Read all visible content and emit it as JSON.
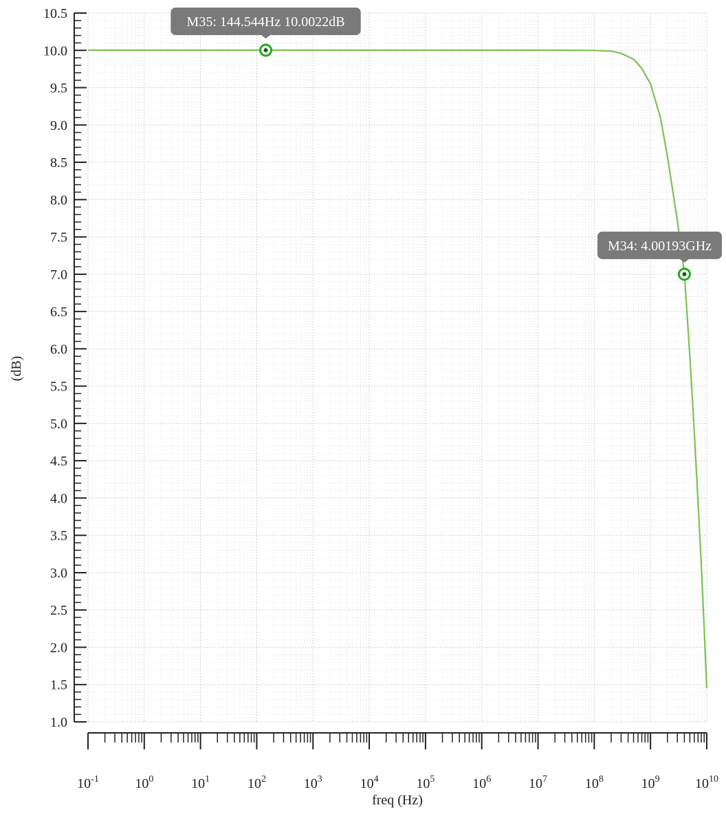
{
  "chart_data": {
    "type": "line",
    "title": "",
    "xlabel": "freq (Hz)",
    "ylabel": "(dB)",
    "xscale": "log10",
    "xlim": [
      0.1,
      10000000000
    ],
    "ylim": [
      1.0,
      10.5
    ],
    "yticks": [
      "1.0",
      "1.5",
      "2.0",
      "2.5",
      "3.0",
      "3.5",
      "4.0",
      "4.5",
      "5.0",
      "5.5",
      "6.0",
      "6.5",
      "7.0",
      "7.5",
      "8.0",
      "8.5",
      "9.0",
      "9.5",
      "10.0",
      "10.5"
    ],
    "xticks": [
      {
        "base": "10",
        "exp": "-1"
      },
      {
        "base": "10",
        "exp": "0"
      },
      {
        "base": "10",
        "exp": "1"
      },
      {
        "base": "10",
        "exp": "2"
      },
      {
        "base": "10",
        "exp": "3"
      },
      {
        "base": "10",
        "exp": "4"
      },
      {
        "base": "10",
        "exp": "5"
      },
      {
        "base": "10",
        "exp": "6"
      },
      {
        "base": "10",
        "exp": "7"
      },
      {
        "base": "10",
        "exp": "8"
      },
      {
        "base": "10",
        "exp": "9"
      },
      {
        "base": "10",
        "exp": "10"
      }
    ],
    "grid": true,
    "series": [
      {
        "color": "#7cc151",
        "x": [
          0.1,
          1,
          10,
          100,
          1000,
          10000,
          100000,
          1000000,
          10000000,
          100000000,
          200000000,
          300000000,
          500000000,
          700000000,
          1000000000,
          1500000000,
          2000000000,
          3000000000,
          4001930000,
          5000000000,
          6000000000,
          7000000000,
          8000000000,
          9000000000,
          10000000000
        ],
        "y": [
          10.0022,
          10.0022,
          10.0022,
          10.0022,
          10.0022,
          10.0022,
          10.0022,
          10.0022,
          10.002,
          10.0,
          9.99,
          9.96,
          9.88,
          9.76,
          9.55,
          9.1,
          8.58,
          7.72,
          7.0,
          5.9,
          4.9,
          3.95,
          3.1,
          2.25,
          1.45
        ]
      }
    ],
    "markers": [
      {
        "name": "M35",
        "label": "M35: 144.544Hz 10.0022dB",
        "x": 144.544,
        "y": 10.0022
      },
      {
        "name": "M34",
        "label": "M34: 4.00193GHz",
        "x": 4001930000,
        "y": 7.0
      }
    ],
    "colors": {
      "trace": "#7cc151",
      "marker_ring": "#22aa22",
      "marker_label_bg": "#7a7a7a",
      "marker_label_text": "#ffffff",
      "grid": "#d0d0d0",
      "axis": "#222222"
    }
  }
}
